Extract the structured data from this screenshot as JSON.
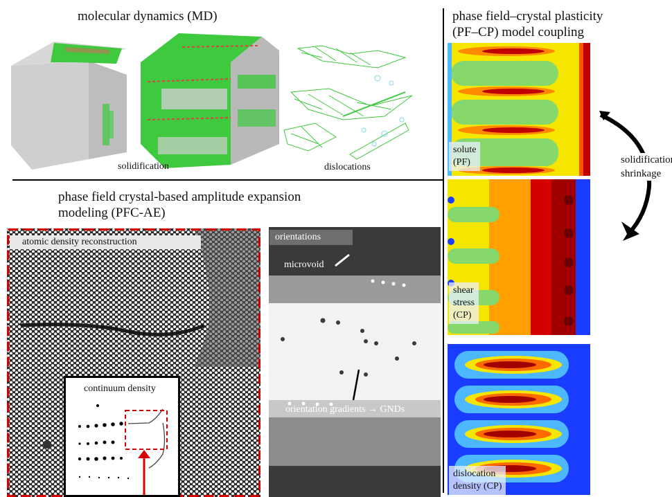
{
  "md": {
    "title": "molecular dynamics (MD)",
    "solidification": "solidification",
    "dislocations": "dislocations"
  },
  "pfc": {
    "title_line1": "phase field crystal-based amplitude expansion",
    "title_line2": "modeling (PFC-AE)",
    "atomic_density_label": "atomic density reconstruction",
    "continuum_density_label": "continuum density",
    "orientations_label": "orientations",
    "microvoid_label": "microvoid",
    "gradients_label": "orientation gradients → GNDs"
  },
  "pfcp": {
    "title_line1": "phase field–crystal plasticity",
    "title_line2": "(PF–CP) model coupling",
    "solute_line1": "solute",
    "solute_line2": "(PF)",
    "shear_line1": "shear",
    "shear_line2": "stress",
    "shear_line3": "(CP)",
    "disloc_line1": "dislocation",
    "disloc_line2": "density (CP)",
    "arrow_line1": "solidification",
    "arrow_line2": "shrinkage"
  },
  "colors": {
    "md_green": "#3fc93f",
    "md_grey": "#c9c9c9",
    "red_dash": "#d40000",
    "field_blue": "#1a3cff",
    "field_red": "#c00000"
  }
}
